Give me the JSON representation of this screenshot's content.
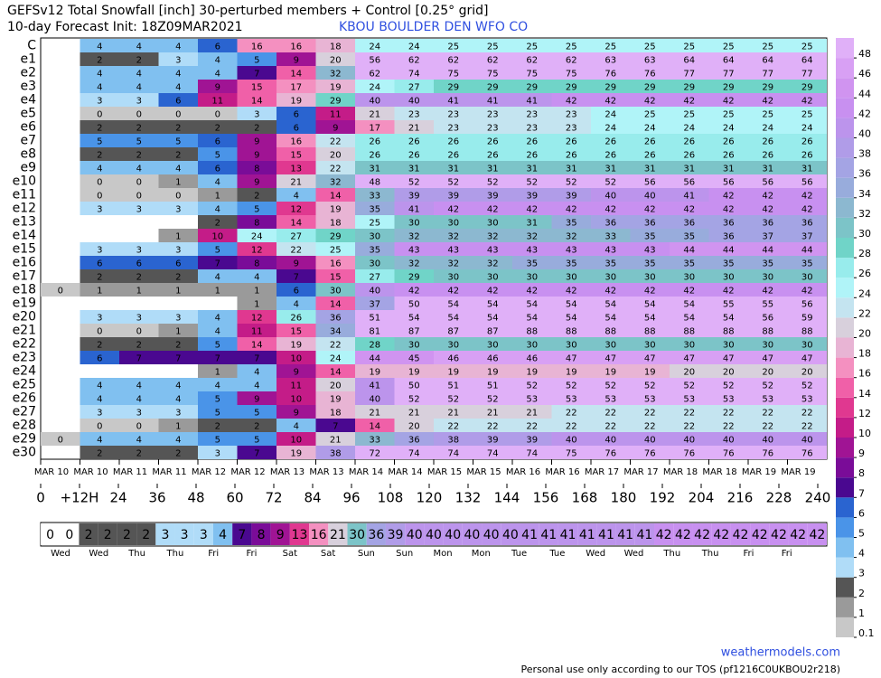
{
  "chart_data": {
    "type": "heatmap",
    "title": "GEFSv12 Total Snowfall [inch]  30-perturbed members + Control [0.25° grid]",
    "subtitle": "10-day Forecast Init: 18Z09MAR2021",
    "station": "KBOU  BOULDER DEN WFO CO",
    "categories": [
      "MAR 10",
      "MAR 10",
      "MAR 11",
      "MAR 11",
      "MAR 12",
      "MAR 12",
      "MAR 13",
      "MAR 13",
      "MAR 14",
      "MAR 14",
      "MAR 15",
      "MAR 15",
      "MAR 16",
      "MAR 16",
      "MAR 17",
      "MAR 17",
      "MAR 18",
      "MAR 18",
      "MAR 19",
      "MAR 19"
    ],
    "series": [
      {
        "name": "C",
        "values": [
          null,
          4,
          4,
          4,
          6,
          16,
          16,
          18,
          24,
          24,
          25,
          25,
          25,
          25,
          25,
          25,
          25,
          25,
          25,
          25
        ]
      },
      {
        "name": "e1",
        "values": [
          null,
          2,
          2,
          3,
          4,
          5,
          9,
          20,
          56,
          62,
          62,
          62,
          62,
          62,
          63,
          63,
          64,
          64,
          64,
          64
        ]
      },
      {
        "name": "e2",
        "values": [
          null,
          4,
          4,
          4,
          4,
          7,
          14,
          32,
          62,
          74,
          75,
          75,
          75,
          75,
          76,
          76,
          77,
          77,
          77,
          77
        ]
      },
      {
        "name": "e3",
        "values": [
          null,
          4,
          4,
          4,
          9,
          15,
          17,
          19,
          24,
          27,
          29,
          29,
          29,
          29,
          29,
          29,
          29,
          29,
          29,
          29
        ]
      },
      {
        "name": "e4",
        "values": [
          null,
          3,
          3,
          6,
          11,
          14,
          19,
          29,
          40,
          40,
          41,
          41,
          41,
          42,
          42,
          42,
          42,
          42,
          42,
          42
        ]
      },
      {
        "name": "e5",
        "values": [
          null,
          0,
          0,
          0,
          0,
          3,
          6,
          11,
          21,
          23,
          23,
          23,
          23,
          23,
          24,
          25,
          25,
          25,
          25,
          25
        ]
      },
      {
        "name": "e6",
        "values": [
          null,
          2,
          2,
          2,
          2,
          2,
          6,
          9,
          17,
          21,
          23,
          23,
          23,
          23,
          24,
          24,
          24,
          24,
          24,
          24
        ]
      },
      {
        "name": "e7",
        "values": [
          null,
          5,
          5,
          5,
          6,
          9,
          16,
          22,
          26,
          26,
          26,
          26,
          26,
          26,
          26,
          26,
          26,
          26,
          26,
          26
        ]
      },
      {
        "name": "e8",
        "values": [
          null,
          2,
          2,
          2,
          5,
          9,
          15,
          20,
          26,
          26,
          26,
          26,
          26,
          26,
          26,
          26,
          26,
          26,
          26,
          26
        ]
      },
      {
        "name": "e9",
        "values": [
          null,
          4,
          4,
          4,
          6,
          8,
          13,
          22,
          31,
          31,
          31,
          31,
          31,
          31,
          31,
          31,
          31,
          31,
          31,
          31
        ]
      },
      {
        "name": "e10",
        "values": [
          null,
          0,
          0,
          1,
          4,
          9,
          21,
          32,
          48,
          52,
          52,
          52,
          52,
          52,
          52,
          56,
          56,
          56,
          56,
          56
        ]
      },
      {
        "name": "e11",
        "values": [
          null,
          0,
          0,
          0,
          1,
          2,
          4,
          14,
          33,
          39,
          39,
          39,
          39,
          39,
          40,
          40,
          41,
          42,
          42,
          42
        ]
      },
      {
        "name": "e12",
        "values": [
          null,
          3,
          3,
          3,
          4,
          5,
          12,
          19,
          35,
          41,
          42,
          42,
          42,
          42,
          42,
          42,
          42,
          42,
          42,
          42
        ]
      },
      {
        "name": "e13",
        "values": [
          null,
          null,
          null,
          null,
          2,
          8,
          14,
          18,
          25,
          30,
          30,
          30,
          31,
          35,
          36,
          36,
          36,
          36,
          36,
          36
        ]
      },
      {
        "name": "e14",
        "values": [
          null,
          null,
          null,
          1,
          10,
          24,
          27,
          29,
          30,
          32,
          32,
          32,
          32,
          32,
          33,
          35,
          35,
          36,
          37,
          37
        ]
      },
      {
        "name": "e15",
        "values": [
          null,
          3,
          3,
          3,
          5,
          12,
          22,
          25,
          35,
          43,
          43,
          43,
          43,
          43,
          43,
          43,
          44,
          44,
          44,
          44
        ]
      },
      {
        "name": "e16",
        "values": [
          null,
          6,
          6,
          6,
          7,
          8,
          9,
          16,
          30,
          32,
          32,
          32,
          35,
          35,
          35,
          35,
          35,
          35,
          35,
          35
        ]
      },
      {
        "name": "e17",
        "values": [
          null,
          2,
          2,
          2,
          4,
          4,
          7,
          15,
          27,
          29,
          30,
          30,
          30,
          30,
          30,
          30,
          30,
          30,
          30,
          30
        ]
      },
      {
        "name": "e18",
        "values": [
          0,
          1,
          1,
          1,
          1,
          1,
          6,
          30,
          40,
          42,
          42,
          42,
          42,
          42,
          42,
          42,
          42,
          42,
          42,
          42
        ]
      },
      {
        "name": "e19",
        "values": [
          null,
          null,
          null,
          null,
          null,
          1,
          4,
          14,
          37,
          50,
          54,
          54,
          54,
          54,
          54,
          54,
          54,
          55,
          55,
          56
        ]
      },
      {
        "name": "e20",
        "values": [
          null,
          3,
          3,
          3,
          4,
          12,
          26,
          36,
          51,
          54,
          54,
          54,
          54,
          54,
          54,
          54,
          54,
          54,
          56,
          59
        ]
      },
      {
        "name": "e21",
        "values": [
          null,
          0,
          0,
          1,
          4,
          11,
          15,
          34,
          81,
          87,
          87,
          87,
          88,
          88,
          88,
          88,
          88,
          88,
          88,
          88
        ]
      },
      {
        "name": "e22",
        "values": [
          null,
          2,
          2,
          2,
          5,
          14,
          19,
          22,
          28,
          30,
          30,
          30,
          30,
          30,
          30,
          30,
          30,
          30,
          30,
          30
        ]
      },
      {
        "name": "e23",
        "values": [
          null,
          6,
          7,
          7,
          7,
          7,
          10,
          24,
          44,
          45,
          46,
          46,
          46,
          47,
          47,
          47,
          47,
          47,
          47,
          47
        ]
      },
      {
        "name": "e24",
        "values": [
          null,
          null,
          null,
          null,
          1,
          4,
          9,
          14,
          19,
          19,
          19,
          19,
          19,
          19,
          19,
          19,
          20,
          20,
          20,
          20
        ]
      },
      {
        "name": "e25",
        "values": [
          null,
          4,
          4,
          4,
          4,
          4,
          11,
          20,
          41,
          50,
          51,
          51,
          52,
          52,
          52,
          52,
          52,
          52,
          52,
          52
        ]
      },
      {
        "name": "e26",
        "values": [
          null,
          4,
          4,
          4,
          5,
          9,
          10,
          19,
          40,
          52,
          52,
          52,
          53,
          53,
          53,
          53,
          53,
          53,
          53,
          53
        ]
      },
      {
        "name": "e27",
        "values": [
          null,
          3,
          3,
          3,
          5,
          5,
          9,
          18,
          21,
          21,
          21,
          21,
          21,
          22,
          22,
          22,
          22,
          22,
          22,
          22
        ]
      },
      {
        "name": "e28",
        "values": [
          null,
          0,
          0,
          1,
          2,
          2,
          4,
          7,
          14,
          20,
          22,
          22,
          22,
          22,
          22,
          22,
          22,
          22,
          22,
          22
        ]
      },
      {
        "name": "e29",
        "values": [
          0,
          4,
          4,
          4,
          5,
          5,
          10,
          21,
          33,
          36,
          38,
          39,
          39,
          40,
          40,
          40,
          40,
          40,
          40,
          40
        ]
      },
      {
        "name": "e30",
        "values": [
          null,
          2,
          2,
          2,
          3,
          7,
          19,
          38,
          72,
          74,
          74,
          74,
          74,
          75,
          76,
          76,
          76,
          76,
          76,
          76
        ]
      }
    ],
    "xlim": [
      0,
      240
    ],
    "xticks": [
      0,
      {
        "value": 12,
        "label": "+12H"
      },
      24,
      36,
      48,
      60,
      72,
      84,
      96,
      108,
      120,
      132,
      144,
      156,
      168,
      180,
      192,
      204,
      216,
      228,
      240
    ],
    "summary": {
      "values": [
        0,
        0,
        2,
        2,
        2,
        2,
        3,
        3,
        3,
        4,
        7,
        8,
        9,
        13,
        16,
        21,
        30,
        36,
        39,
        40,
        40,
        40,
        40,
        40,
        40,
        41,
        41,
        41,
        41,
        41,
        41,
        41,
        42,
        42,
        42,
        42,
        42,
        42,
        42,
        42,
        42
      ],
      "days": [
        "Wed",
        "Wed",
        "Thu",
        "Thu",
        "Fri",
        "Fri",
        "Sat",
        "Sat",
        "Sun",
        "Sun",
        "Mon",
        "Mon",
        "Tue",
        "Tue",
        "Wed",
        "Wed",
        "Thu",
        "Thu",
        "Fri",
        "Fri"
      ]
    },
    "colorbar": {
      "ticks": [
        0.1,
        1,
        2,
        3,
        4,
        5,
        6,
        7,
        8,
        9,
        10,
        12,
        14,
        16,
        18,
        20,
        22,
        24,
        26,
        28,
        30,
        32,
        34,
        36,
        38,
        40,
        42,
        44,
        46,
        48
      ],
      "colors": [
        "#c8c8c8",
        "#9a9a9a",
        "#555555",
        "#b0dcf8",
        "#80c0f0",
        "#4a94e8",
        "#2a64d0",
        "#4a0890",
        "#7a0c98",
        "#a01494",
        "#c41c88",
        "#e03890",
        "#f060a8",
        "#f490c0",
        "#e8b4d4",
        "#d8d0dc",
        "#c4e4f0",
        "#b0f4f8",
        "#98ecec",
        "#70d4c8",
        "#7cc4c8",
        "#8cb8d0",
        "#98acdc",
        "#a4a4e4",
        "#b09ce8",
        "#bc94ec",
        "#c890f0",
        "#d094f0",
        "#d8a0f4",
        "#e0b0f8"
      ]
    },
    "source": "weathermodels.com",
    "notice": "Personal use only according to our TOS (pf1216C0UKBOU2r218)"
  }
}
